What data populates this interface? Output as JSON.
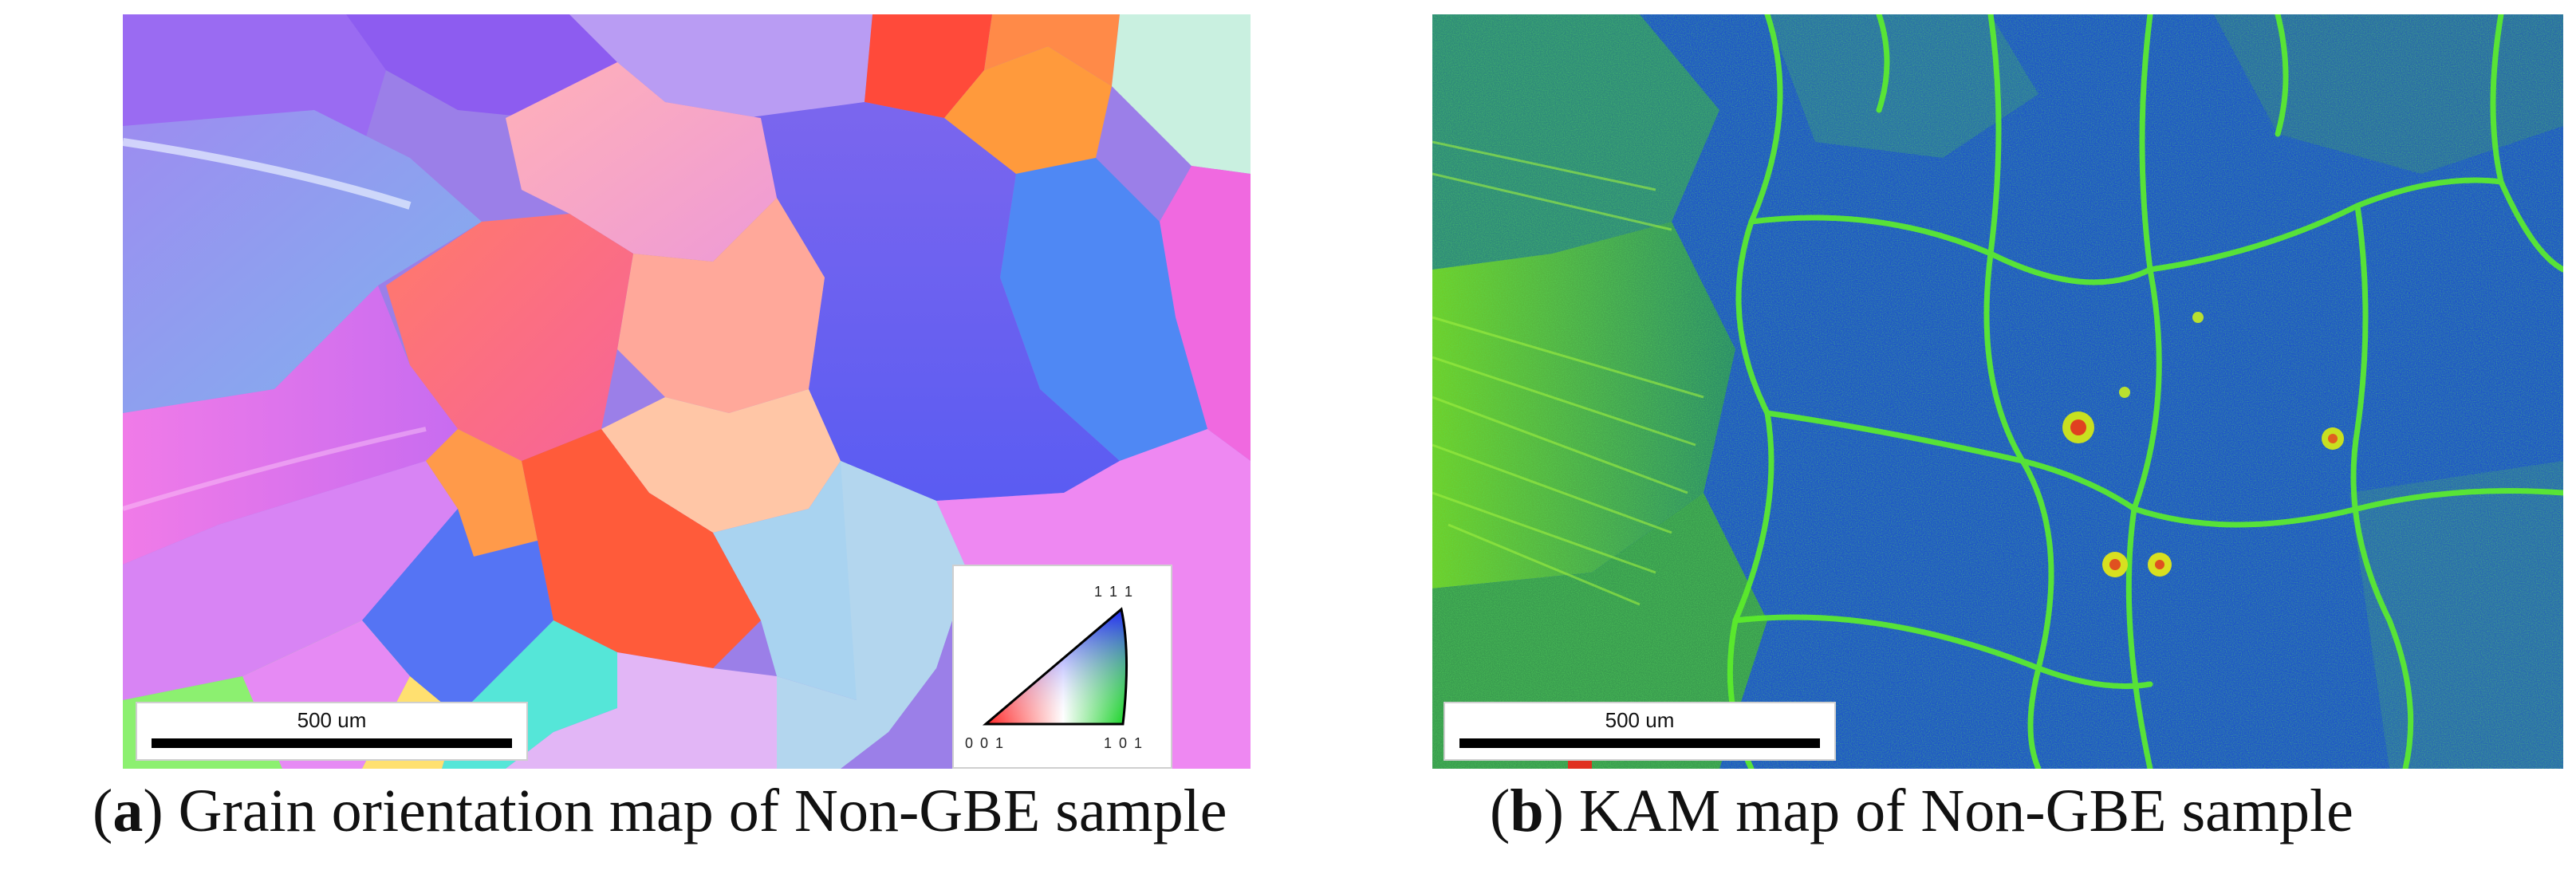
{
  "panel_a": {
    "scale_bar_label": "500 um",
    "ipf_key": {
      "corner_top": "1 1 1",
      "corner_left": "0 0 1",
      "corner_right": "1 0 1"
    },
    "caption": {
      "open": "(",
      "letter": "a",
      "close": ")",
      "text": " Grain orientation map of Non-GBE sample"
    }
  },
  "panel_b": {
    "scale_bar_label": "500 um",
    "caption": {
      "open": "(",
      "letter": "b",
      "close": ")",
      "text": " KAM map of Non-GBE sample"
    }
  }
}
